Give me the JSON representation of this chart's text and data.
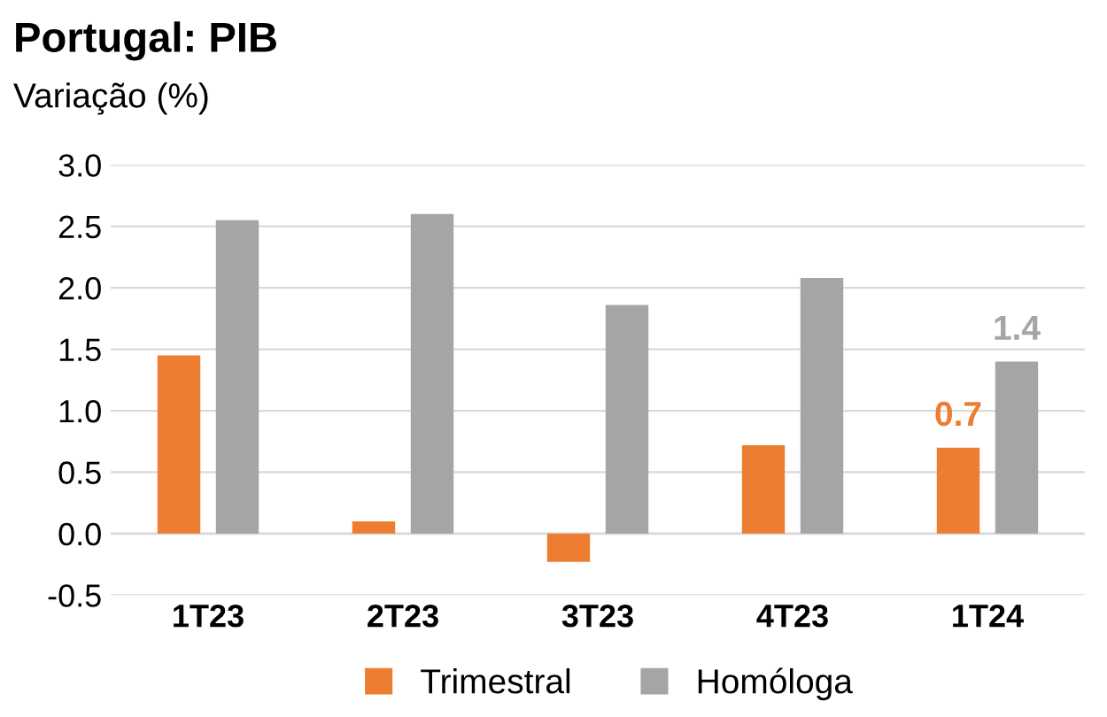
{
  "chart_data": {
    "type": "bar",
    "title": "Portugal: PIB",
    "subtitle": "Variação (%)",
    "categories": [
      "1T23",
      "2T23",
      "3T23",
      "4T23",
      "1T24"
    ],
    "series": [
      {
        "name": "Trimestral",
        "color": "#ed7d31",
        "values": [
          1.45,
          0.1,
          -0.23,
          0.72,
          0.7
        ],
        "value_labels": [
          null,
          null,
          null,
          null,
          "0.7"
        ]
      },
      {
        "name": "Homóloga",
        "color": "#a5a5a5",
        "values": [
          2.55,
          2.6,
          1.86,
          2.08,
          1.4
        ],
        "value_labels": [
          null,
          null,
          null,
          null,
          "1.4"
        ]
      }
    ],
    "ylim": [
      -0.5,
      3.0
    ],
    "yticks": [
      "-0.5",
      "0.0",
      "0.5",
      "1.0",
      "1.5",
      "2.0",
      "2.5",
      "3.0"
    ],
    "grid": "y",
    "legend": "bottom"
  }
}
